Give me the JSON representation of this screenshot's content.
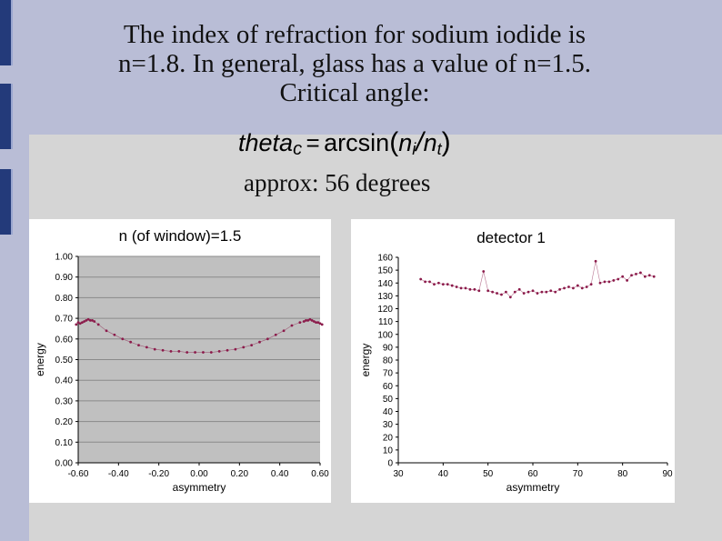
{
  "title_lines": [
    "The index of refraction for sodium iodide is",
    "n=1.8.  In general, glass has a value of n=1.5.",
    "Critical angle:"
  ],
  "formula": {
    "lhs": "theta",
    "lhs_sub": "c",
    "eq": "=",
    "func": "arcsin",
    "num": "n",
    "num_sub": "i",
    "slash": "/",
    "den": "n",
    "den_sub": "t"
  },
  "approx_text": "approx: 56 degrees",
  "colors": {
    "background": "#b9bdd6",
    "content": "#d5d5d5",
    "sidebar": "#233a7a",
    "series": "#8b1a4a",
    "plot_area": "#c0c0c0"
  },
  "chart_data": [
    {
      "type": "line",
      "title": "n (of window)=1.5",
      "xlabel": "asymmetry",
      "ylabel": "energy",
      "xlim": [
        -0.6,
        0.6
      ],
      "ylim": [
        0,
        1
      ],
      "xticks": [
        "-0.60",
        "-0.40",
        "-0.20",
        "0.00",
        "0.20",
        "0.40",
        "0.60"
      ],
      "yticks": [
        "0.00",
        "0.10",
        "0.20",
        "0.30",
        "0.40",
        "0.50",
        "0.60",
        "0.70",
        "0.80",
        "0.90",
        "1.00"
      ],
      "grid": true,
      "series": [
        {
          "x": [
            -0.61,
            -0.6,
            -0.59,
            -0.58,
            -0.57,
            -0.56,
            -0.55,
            -0.54,
            -0.53,
            -0.52,
            -0.5,
            -0.46,
            -0.42,
            -0.38,
            -0.34,
            -0.3,
            -0.26,
            -0.22,
            -0.18,
            -0.14,
            -0.1,
            -0.06,
            -0.02,
            0.02,
            0.06,
            0.1,
            0.14,
            0.18,
            0.22,
            0.26,
            0.3,
            0.34,
            0.38,
            0.42,
            0.46,
            0.5,
            0.52,
            0.53,
            0.54,
            0.55,
            0.56,
            0.57,
            0.58,
            0.59,
            0.6,
            0.61
          ],
          "y": [
            0.67,
            0.68,
            0.675,
            0.68,
            0.685,
            0.69,
            0.695,
            0.69,
            0.69,
            0.685,
            0.67,
            0.64,
            0.62,
            0.6,
            0.585,
            0.57,
            0.56,
            0.55,
            0.545,
            0.54,
            0.54,
            0.535,
            0.535,
            0.535,
            0.535,
            0.54,
            0.545,
            0.55,
            0.56,
            0.57,
            0.585,
            0.6,
            0.62,
            0.64,
            0.665,
            0.68,
            0.685,
            0.69,
            0.69,
            0.695,
            0.69,
            0.685,
            0.68,
            0.68,
            0.675,
            0.67
          ]
        }
      ]
    },
    {
      "type": "line",
      "title": "detector 1",
      "xlabel": "asymmetry",
      "ylabel": "energy",
      "xlim": [
        30,
        90
      ],
      "ylim": [
        0,
        160
      ],
      "xticks": [
        "30",
        "40",
        "50",
        "60",
        "70",
        "80",
        "90"
      ],
      "yticks": [
        "0",
        "10",
        "20",
        "30",
        "40",
        "50",
        "60",
        "70",
        "80",
        "90",
        "100",
        "110",
        "120",
        "130",
        "140",
        "150",
        "160"
      ],
      "grid": false,
      "series": [
        {
          "x": [
            35,
            36,
            37,
            38,
            39,
            40,
            41,
            42,
            43,
            44,
            45,
            46,
            47,
            48,
            49,
            50,
            51,
            52,
            53,
            54,
            55,
            56,
            57,
            58,
            59,
            60,
            61,
            62,
            63,
            64,
            65,
            66,
            67,
            68,
            69,
            70,
            71,
            72,
            73,
            74,
            75,
            76,
            77,
            78,
            79,
            80,
            81,
            82,
            83,
            84,
            85,
            86,
            87
          ],
          "y": [
            143,
            141,
            141,
            139,
            140,
            139,
            139,
            138,
            137,
            136,
            136,
            135,
            135,
            134,
            149,
            134,
            133,
            132,
            131,
            133,
            129,
            133,
            135,
            132,
            133,
            134,
            132,
            133,
            133,
            134,
            133,
            135,
            136,
            137,
            136,
            138,
            136,
            137,
            139,
            157,
            140,
            141,
            141,
            142,
            143,
            145,
            142,
            146,
            147,
            148,
            145,
            146,
            145
          ]
        }
      ]
    }
  ]
}
